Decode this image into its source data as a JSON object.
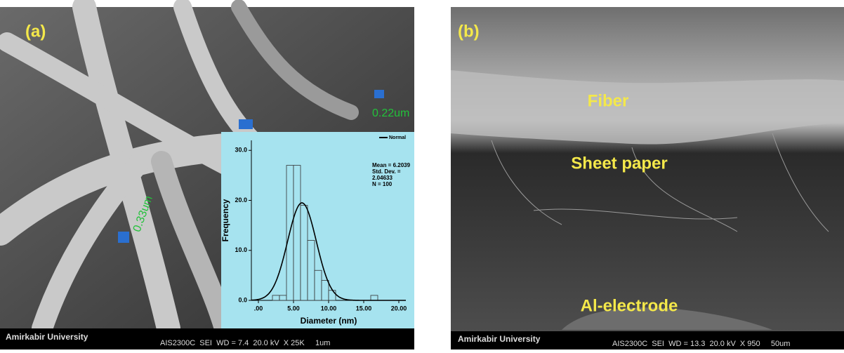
{
  "panels": {
    "a": {
      "label": "(a)",
      "measurements": [
        "0.22um",
        "0.33um"
      ],
      "footer": {
        "institution": "Amirkabir University",
        "info": "AIS2300C  SEI  WD = 7.4  20.0 kV  X 25K     1um"
      }
    },
    "b": {
      "label": "(b)",
      "annotations": [
        "Fiber",
        "Sheet paper",
        "Al-electrode"
      ],
      "footer": {
        "institution": "Amirkabir University",
        "info": "AIS2300C  SEI  WD = 13.3  20.0 kV  X 950     50um"
      }
    }
  },
  "chart_data": {
    "type": "histogram",
    "x_label": "Diameter (nm)",
    "y_label": "Frequency",
    "bins": [
      2,
      3,
      4,
      5,
      6,
      7,
      8,
      9,
      10,
      11,
      12,
      13,
      14,
      15,
      16,
      17
    ],
    "values": [
      1,
      1,
      27,
      27,
      19,
      12,
      6,
      4,
      2,
      0,
      0,
      0,
      0,
      0,
      1
    ],
    "color": "#a6e3ef",
    "legend": "Normal",
    "normal_fit": {
      "mean": 6.2039,
      "std_dev": 2.04633,
      "n": 100,
      "labels": [
        "Mean = 6.2039",
        "Std. Dev. =",
        "2.04633",
        "N = 100"
      ]
    },
    "xlim": [
      -1,
      21
    ],
    "xticks": [
      {
        "value": 0,
        "label": ".00"
      },
      {
        "value": 5,
        "label": "5.00"
      },
      {
        "value": 10,
        "label": "10.00"
      },
      {
        "value": 15,
        "label": "15.00"
      },
      {
        "value": 20,
        "label": "20.00"
      }
    ],
    "ylim": [
      0,
      32
    ],
    "yticks": [
      {
        "value": 0,
        "label": "0.0"
      },
      {
        "value": 10,
        "label": "10.0"
      },
      {
        "value": 20,
        "label": "20.0"
      },
      {
        "value": 30,
        "label": "30.0"
      }
    ]
  }
}
